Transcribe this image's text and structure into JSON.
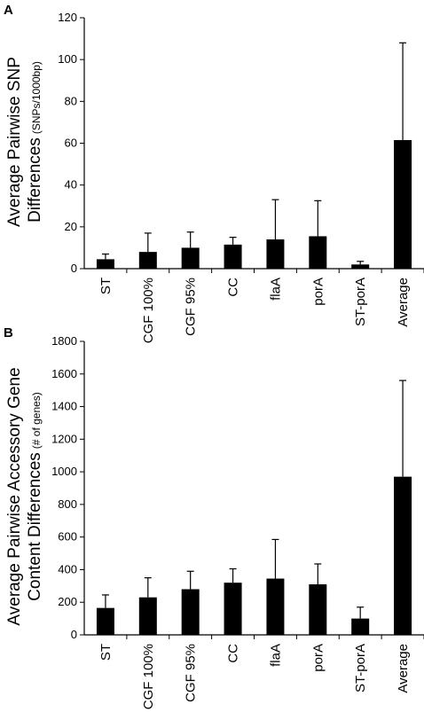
{
  "chart_data": [
    {
      "panel": "A",
      "type": "bar",
      "ylabel_main": "Average Pairwise SNP",
      "ylabel_line2": "Differences",
      "ylabel_unit": "(SNPs/1000bp)",
      "categories": [
        "ST",
        "CGF 100%",
        "CGF 95%",
        "CC",
        "flaA",
        "porA",
        "ST-porA",
        "Average"
      ],
      "values": [
        4.5,
        8,
        10,
        11.5,
        14,
        15.5,
        2,
        61.5
      ],
      "errors": [
        2.5,
        9,
        7.5,
        3.5,
        19,
        17,
        1.5,
        46.5
      ],
      "ylim": [
        0,
        120
      ],
      "yticks": [
        0,
        20,
        40,
        60,
        80,
        100,
        120
      ],
      "grid": false,
      "color": "#000000"
    },
    {
      "panel": "B",
      "type": "bar",
      "ylabel_main": "Average Pairwise Accessory Gene",
      "ylabel_line2": "Content Differences",
      "ylabel_unit": "(# of genes)",
      "categories": [
        "ST",
        "CGF 100%",
        "CGF 95%",
        "CC",
        "flaA",
        "porA",
        "ST-porA",
        "Average"
      ],
      "values": [
        165,
        230,
        280,
        320,
        345,
        310,
        100,
        970
      ],
      "errors": [
        80,
        120,
        110,
        85,
        240,
        125,
        70,
        590
      ],
      "ylim": [
        0,
        1800
      ],
      "yticks": [
        0,
        200,
        400,
        600,
        800,
        1000,
        1200,
        1400,
        1600,
        1800
      ],
      "grid": false,
      "color": "#000000"
    }
  ]
}
